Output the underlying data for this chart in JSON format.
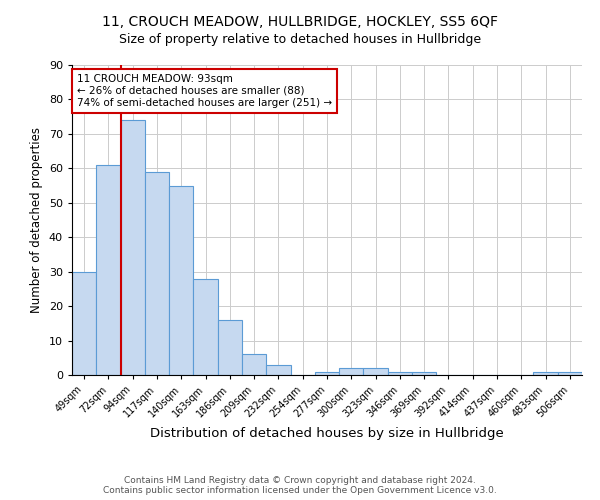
{
  "title": "11, CROUCH MEADOW, HULLBRIDGE, HOCKLEY, SS5 6QF",
  "subtitle": "Size of property relative to detached houses in Hullbridge",
  "xlabel": "Distribution of detached houses by size in Hullbridge",
  "ylabel": "Number of detached properties",
  "bins": [
    "49sqm",
    "72sqm",
    "94sqm",
    "117sqm",
    "140sqm",
    "163sqm",
    "186sqm",
    "209sqm",
    "232sqm",
    "254sqm",
    "277sqm",
    "300sqm",
    "323sqm",
    "346sqm",
    "369sqm",
    "392sqm",
    "414sqm",
    "437sqm",
    "460sqm",
    "483sqm",
    "506sqm"
  ],
  "values": [
    30,
    61,
    74,
    59,
    55,
    28,
    16,
    6,
    3,
    0,
    1,
    2,
    2,
    1,
    1,
    0,
    0,
    0,
    0,
    1,
    1
  ],
  "bar_color": "#c6d9f0",
  "bar_edge_color": "#5b9bd5",
  "vline_x": 1.5,
  "annotation_label": "11 CROUCH MEADOW: 93sqm\n← 26% of detached houses are smaller (88)\n74% of semi-detached houses are larger (251) →",
  "annotation_box_color": "#ffffff",
  "annotation_box_edge": "#cc0000",
  "vline_color": "#cc0000",
  "footer1": "Contains HM Land Registry data © Crown copyright and database right 2024.",
  "footer2": "Contains public sector information licensed under the Open Government Licence v3.0.",
  "ylim": [
    0,
    90
  ],
  "yticks": [
    0,
    10,
    20,
    30,
    40,
    50,
    60,
    70,
    80,
    90
  ],
  "grid_color": "#cccccc",
  "title_fontsize": 10,
  "xlabel_fontsize": 9.5,
  "ylabel_fontsize": 8.5,
  "tick_fontsize": 7,
  "annot_fontsize": 7.5,
  "footer_fontsize": 6.5
}
